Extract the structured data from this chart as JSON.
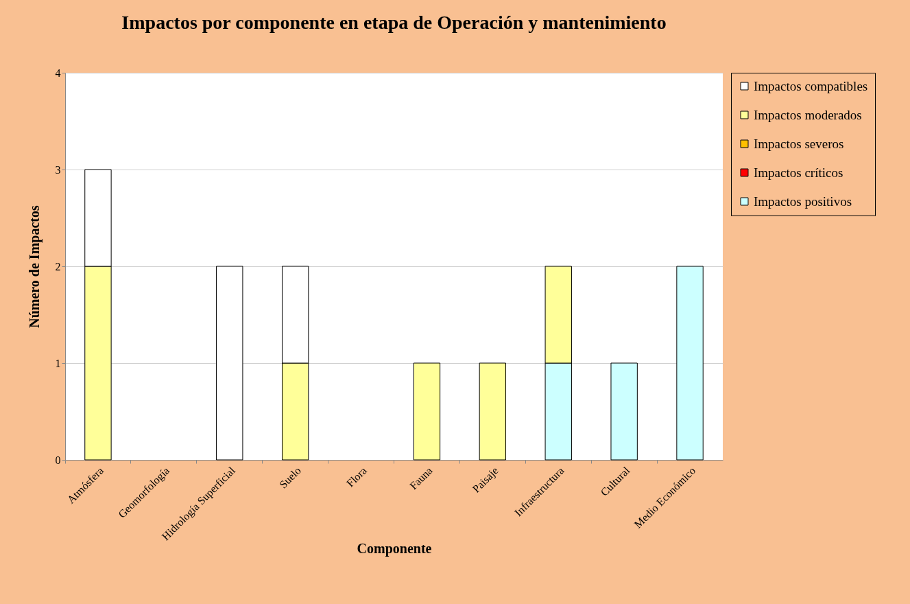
{
  "chart_data": {
    "type": "bar",
    "title": "Impactos por componente en etapa de Operación y mantenimiento",
    "xlabel": "Componente",
    "ylabel": "Número de Impactos",
    "categories": [
      "Atmósfera",
      "Geomorfología",
      "Hidrología Superficial",
      "Suelo",
      "Flora",
      "Fauna",
      "Paisaje",
      "Infraestructura",
      "Cultural",
      "Medio  Económico"
    ],
    "stacked": true,
    "series": [
      {
        "name": "Impactos positivos",
        "color": "#ccffff",
        "values": [
          0,
          0,
          0,
          0,
          0,
          0,
          0,
          1,
          1,
          2
        ]
      },
      {
        "name": "Impactos críticos",
        "color": "#ff0000",
        "values": [
          0,
          0,
          0,
          0,
          0,
          0,
          0,
          0,
          0,
          0
        ]
      },
      {
        "name": "Impactos severos",
        "color": "#ffc000",
        "values": [
          0,
          0,
          0,
          0,
          0,
          0,
          0,
          0,
          0,
          0
        ]
      },
      {
        "name": "Impactos moderados",
        "color": "#ffff99",
        "values": [
          2,
          0,
          0,
          1,
          0,
          1,
          1,
          1,
          0,
          0
        ]
      },
      {
        "name": "Impactos compatibles",
        "color": "#ffffff",
        "values": [
          1,
          0,
          2,
          1,
          0,
          0,
          0,
          0,
          0,
          0
        ]
      }
    ],
    "ylim": [
      0,
      4
    ],
    "yticks": [
      0,
      1,
      2,
      3,
      4
    ],
    "grid": "y",
    "legend": "top right"
  }
}
